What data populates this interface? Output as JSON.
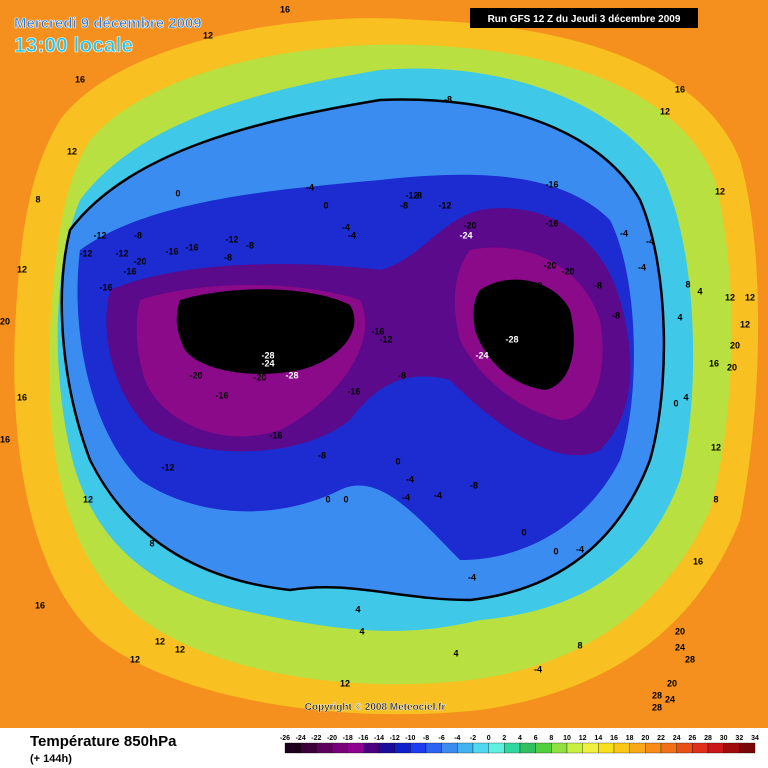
{
  "header": {
    "date": "Mercredi 9 décembre 2009",
    "time": "13:00 locale",
    "run": "Run GFS 12 Z du Jeudi 3 décembre 2009"
  },
  "copyright": "Copyright © 2008 Meteociel.fr",
  "footer": {
    "title": "Température 850hPa",
    "lead": "(+ 144h)"
  },
  "legend": {
    "ticks": [
      -26,
      -24,
      -22,
      -20,
      -18,
      -16,
      -14,
      -12,
      -10,
      -8,
      -6,
      -4,
      -2,
      0,
      2,
      4,
      6,
      8,
      10,
      12,
      14,
      16,
      18,
      20,
      22,
      24,
      26,
      28,
      30,
      32,
      34
    ],
    "colors": [
      "#1a001a",
      "#3a003a",
      "#5a005a",
      "#780078",
      "#900090",
      "#4b0082",
      "#1c0c9a",
      "#1020c8",
      "#1e3cf0",
      "#2a64f0",
      "#3c8cf0",
      "#40b4f0",
      "#50d8f0",
      "#60f0e0",
      "#30d8a0",
      "#30c060",
      "#50d040",
      "#90e040",
      "#c8f040",
      "#f0f040",
      "#f8e020",
      "#f8c818",
      "#f8a818",
      "#f88c18",
      "#f07018",
      "#e85018",
      "#e03018",
      "#c81818",
      "#a00c0c",
      "#780808"
    ]
  },
  "contour_labels": [
    16,
    12,
    16,
    12,
    8,
    12,
    20,
    16,
    16,
    12,
    8,
    16,
    12,
    12,
    12,
    12,
    16,
    12,
    12,
    8,
    4,
    12,
    12,
    4,
    12,
    20,
    20,
    16,
    12,
    8,
    16,
    20,
    24,
    28,
    28,
    28,
    24,
    20,
    -8,
    -16,
    -16,
    -12,
    -12,
    -8,
    -8,
    -20,
    -24,
    -20,
    -20,
    -20,
    -8,
    -8,
    -4,
    -4,
    -4,
    -28,
    -24,
    -16,
    -12,
    -8,
    -28,
    -24,
    -20,
    -20,
    -28,
    -16,
    -16,
    -16,
    -12,
    -8,
    -4,
    0,
    -4,
    -4,
    0,
    -12,
    -12,
    -12,
    -8,
    -20,
    -16,
    -16,
    -16,
    -12,
    -8,
    -8,
    -16,
    0,
    -4,
    -4,
    -8,
    -4,
    0,
    0,
    0,
    0,
    -4,
    -4,
    8,
    4,
    4,
    4,
    -4,
    0,
    4
  ]
}
